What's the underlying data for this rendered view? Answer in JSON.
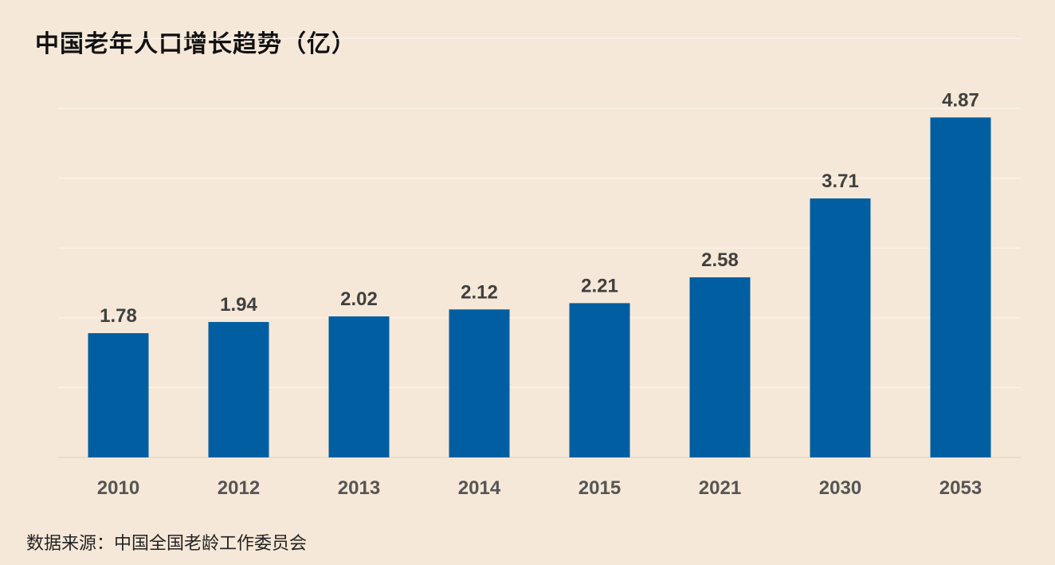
{
  "chart_data": {
    "type": "bar",
    "title": "中国老年人口增长趋势（亿）",
    "categories": [
      "2010",
      "2012",
      "2013",
      "2014",
      "2015",
      "2021",
      "2030",
      "2053"
    ],
    "values": [
      1.78,
      1.94,
      2.02,
      2.12,
      2.21,
      2.58,
      3.71,
      4.87
    ],
    "data_labels": [
      "1.78",
      "1.94",
      "2.02",
      "2.12",
      "2.21",
      "2.58",
      "3.71",
      "4.87"
    ],
    "xlabel": "",
    "ylabel": "",
    "ylim": [
      0,
      6
    ],
    "grid": true,
    "legend": "none",
    "colors": {
      "bar": "#005ea1",
      "background": "#f6e8d8",
      "grid": "#fbf4ec"
    }
  },
  "source": "数据来源：中国全国老龄工作委员会"
}
